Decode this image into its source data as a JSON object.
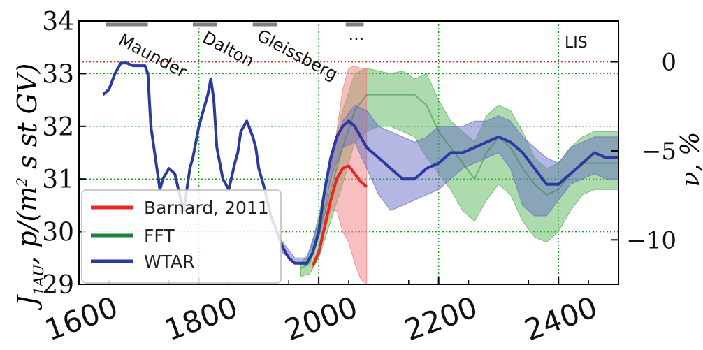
{
  "chart_data": {
    "type": "line",
    "xlim": [
      1600,
      2500
    ],
    "ylim": [
      29,
      34
    ],
    "y2lim": [
      -12.5,
      2.3
    ],
    "x_ticks": [
      1600,
      1800,
      2000,
      2200,
      2400
    ],
    "y_ticks": [
      29,
      30,
      31,
      32,
      33,
      34
    ],
    "y2_ticks": [
      0,
      -5,
      -10
    ],
    "x_tick_labels": [
      "1600",
      "1800",
      "2000",
      "2200",
      "2400"
    ],
    "y_tick_labels": [
      "29",
      "30",
      "31",
      "32",
      "33",
      "34"
    ],
    "y2_tick_labels": [
      "0",
      "−5",
      "−10"
    ],
    "ylabel": "J",
    "ylabel_sub": "1AU",
    "ylabel_rest": ", p/(m",
    "ylabel_sup": "2",
    "ylabel_tail": " s st GV)",
    "y2label": "ν, %",
    "grid": true,
    "legend_position": "lower-left",
    "colors": {
      "barnard": "#e8262a",
      "fft": "#1f7f3a",
      "fft_band": "#5cb85c",
      "wtar": "#2b3a9e",
      "wtar_band": "#6a6fc4",
      "barnard_band": "#f08080",
      "grid": "#17a41b",
      "zero_line": "#e8262a",
      "minimum_bar": "#808080"
    },
    "minima": [
      {
        "label": "Maunder",
        "start": 1645,
        "end": 1715
      },
      {
        "label": "Dalton",
        "start": 1790,
        "end": 1830
      },
      {
        "label": "Gleissberg",
        "start": 1890,
        "end": 1930
      },
      {
        "label": "...",
        "start": 2045,
        "end": 2075
      }
    ],
    "lis_label": "LIS",
    "lis_y2": 0,
    "series": [
      {
        "name": "Barnard, 2011",
        "color": "#e8262a",
        "x": [
          1990,
          2000,
          2010,
          2020,
          2030,
          2040,
          2050,
          2060,
          2070,
          2080
        ],
        "y": [
          29.35,
          29.6,
          30.1,
          30.6,
          31.0,
          31.2,
          31.25,
          31.1,
          30.95,
          30.85
        ],
        "band_x": [
          1990,
          2000,
          2010,
          2020,
          2030,
          2040,
          2050,
          2060,
          2070,
          2080
        ],
        "band_low": [
          29.3,
          29.6,
          30.0,
          30.4,
          30.4,
          30.0,
          29.8,
          29.4,
          29.1,
          29.0
        ],
        "band_high": [
          29.4,
          29.7,
          30.3,
          31.1,
          31.9,
          32.7,
          33.1,
          33.15,
          33.1,
          33.1
        ]
      },
      {
        "name": "FFT",
        "color": "#1f7f3a",
        "x": [
          1970,
          1985,
          2000,
          2020,
          2040,
          2060,
          2080,
          2100,
          2120,
          2140,
          2160,
          2180,
          2200,
          2220,
          2240,
          2260,
          2280,
          2300,
          2320,
          2340,
          2360,
          2380,
          2400,
          2420,
          2440,
          2460,
          2480,
          2500
        ],
        "y": [
          29.3,
          29.4,
          29.9,
          30.8,
          31.6,
          32.3,
          32.6,
          32.6,
          32.6,
          32.6,
          32.6,
          32.4,
          31.9,
          31.6,
          31.3,
          31.0,
          31.5,
          31.8,
          31.6,
          31.2,
          30.9,
          30.7,
          30.8,
          31.1,
          31.3,
          31.3,
          31.3,
          31.3
        ],
        "band_x": [
          1970,
          1985,
          2000,
          2020,
          2040,
          2060,
          2080,
          2100,
          2120,
          2140,
          2160,
          2180,
          2200,
          2220,
          2240,
          2260,
          2280,
          2300,
          2320,
          2340,
          2360,
          2380,
          2400,
          2420,
          2440,
          2460,
          2480,
          2500
        ],
        "band_low": [
          29.15,
          29.2,
          29.5,
          30.2,
          30.9,
          31.7,
          31.9,
          32.0,
          32.0,
          31.9,
          31.8,
          31.4,
          31.1,
          30.8,
          30.4,
          30.2,
          30.6,
          30.9,
          30.7,
          30.2,
          29.9,
          29.8,
          30.0,
          30.4,
          30.7,
          30.8,
          30.8,
          30.8
        ],
        "band_high": [
          29.4,
          29.6,
          30.3,
          31.4,
          32.3,
          33.0,
          33.1,
          33.05,
          33.0,
          33.05,
          32.9,
          33.0,
          32.5,
          32.1,
          31.9,
          31.7,
          32.2,
          32.4,
          32.3,
          31.9,
          31.4,
          31.2,
          31.3,
          31.6,
          31.8,
          31.9,
          31.9,
          31.9
        ]
      },
      {
        "name": "WTAR",
        "color": "#2b3a9e",
        "x": [
          1640,
          1650,
          1660,
          1670,
          1680,
          1690,
          1700,
          1710,
          1715,
          1720,
          1725,
          1730,
          1735,
          1740,
          1750,
          1760,
          1770,
          1775,
          1780,
          1785,
          1790,
          1800,
          1810,
          1815,
          1820,
          1825,
          1830,
          1840,
          1850,
          1860,
          1865,
          1870,
          1880,
          1890,
          1895,
          1900,
          1910,
          1920,
          1930,
          1940,
          1950,
          1960,
          1970,
          1980,
          1990,
          2000,
          2010,
          2020,
          2030,
          2040,
          2050,
          2060,
          2070,
          2080,
          2100,
          2120,
          2140,
          2160,
          2180,
          2200,
          2220,
          2240,
          2260,
          2280,
          2300,
          2320,
          2340,
          2360,
          2380,
          2400,
          2420,
          2440,
          2460,
          2480,
          2500
        ],
        "y": [
          32.6,
          32.7,
          33.0,
          33.2,
          33.2,
          33.15,
          33.15,
          33.15,
          33.0,
          32.0,
          31.6,
          31.2,
          30.8,
          31.0,
          31.2,
          31.1,
          30.6,
          30.4,
          30.8,
          31.2,
          31.4,
          32.0,
          32.4,
          32.6,
          32.9,
          32.5,
          31.6,
          31.0,
          30.8,
          31.3,
          31.5,
          31.9,
          32.1,
          31.8,
          31.6,
          31.2,
          30.8,
          30.3,
          30.0,
          29.7,
          29.5,
          29.4,
          29.4,
          29.4,
          29.6,
          30.0,
          30.8,
          31.4,
          31.8,
          32.0,
          32.1,
          32.0,
          31.8,
          31.6,
          31.4,
          31.2,
          31.0,
          31.0,
          31.2,
          31.3,
          31.5,
          31.5,
          31.6,
          31.7,
          31.8,
          31.7,
          31.5,
          31.2,
          30.9,
          30.9,
          31.1,
          31.3,
          31.5,
          31.4,
          31.4
        ],
        "band_x": [
          1940,
          1960,
          1980,
          2000,
          2020,
          2040,
          2060,
          2080,
          2100,
          2120,
          2140,
          2160,
          2180,
          2200,
          2220,
          2240,
          2260,
          2280,
          2300,
          2320,
          2340,
          2360,
          2380,
          2400,
          2420,
          2440,
          2460,
          2480,
          2500
        ],
        "band_low": [
          29.6,
          29.4,
          29.35,
          29.9,
          31.0,
          31.6,
          31.7,
          31.2,
          30.7,
          30.4,
          30.5,
          30.6,
          30.7,
          30.8,
          31.0,
          31.2,
          31.3,
          31.4,
          31.5,
          31.2,
          30.5,
          30.3,
          30.3,
          30.6,
          30.9,
          31.0,
          31.1,
          31.0,
          31.0
        ],
        "band_high": [
          29.8,
          29.5,
          29.5,
          30.2,
          31.3,
          32.1,
          32.4,
          32.3,
          32.0,
          31.9,
          31.8,
          31.7,
          31.8,
          32.0,
          32.0,
          32.0,
          32.1,
          32.1,
          32.2,
          32.1,
          31.8,
          31.6,
          31.4,
          31.3,
          31.6,
          31.7,
          31.8,
          31.8,
          31.8
        ]
      }
    ]
  }
}
